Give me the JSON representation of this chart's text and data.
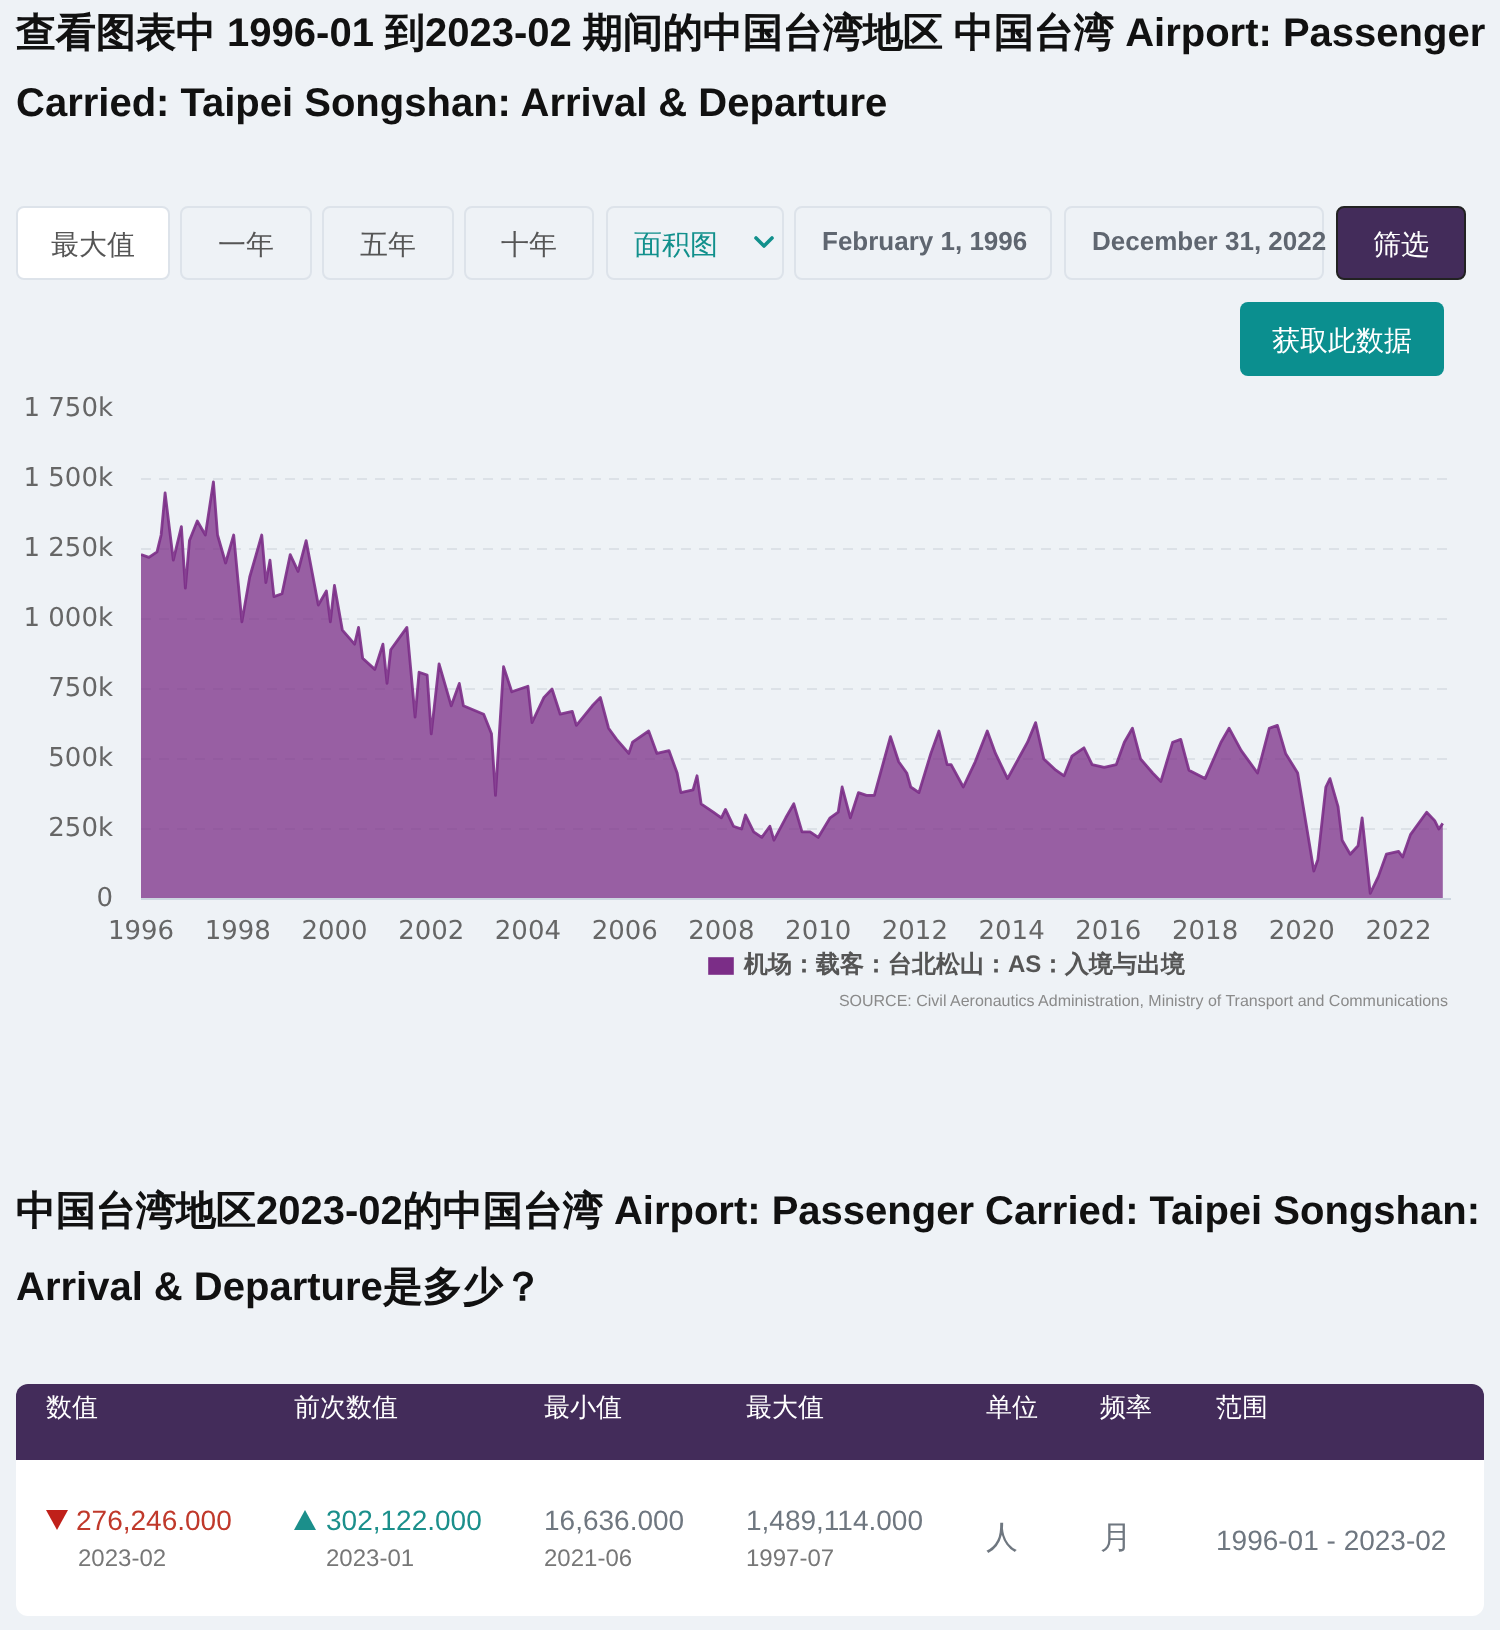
{
  "chart_data": {
    "type": "area",
    "title": "查看图表中 1996-01 到2023-02 期间的中国台湾地区 中国台湾 Airport: Passenger Carried: Taipei Songshan: Arrival & Departure",
    "x": [
      "1996-01",
      "1996-03",
      "1996-05",
      "1996-06",
      "1996-07",
      "1996-09",
      "1996-11",
      "1996-12",
      "1997-01",
      "1997-03",
      "1997-05",
      "1997-07",
      "1997-08",
      "1997-10",
      "1997-12",
      "1998-02",
      "1998-04",
      "1998-07",
      "1998-08",
      "1998-09",
      "1998-10",
      "1998-12",
      "1999-02",
      "1999-04",
      "1999-06",
      "1999-09",
      "1999-11",
      "1999-12",
      "2000-01",
      "2000-03",
      "2000-06",
      "2000-07",
      "2000-08",
      "2000-11",
      "2001-01",
      "2001-02",
      "2001-03",
      "2001-07",
      "2001-09",
      "2001-10",
      "2001-12",
      "2002-01",
      "2002-03",
      "2002-06",
      "2002-08",
      "2002-09",
      "2003-02",
      "2003-04",
      "2003-05",
      "2003-07",
      "2003-09",
      "2004-01",
      "2004-02",
      "2004-05",
      "2004-07",
      "2004-09",
      "2004-12",
      "2005-01",
      "2005-05",
      "2005-07",
      "2005-09",
      "2005-11",
      "2006-02",
      "2006-03",
      "2006-07",
      "2006-09",
      "2006-12",
      "2007-02",
      "2007-03",
      "2007-06",
      "2007-07",
      "2007-08",
      "2007-11",
      "2008-01",
      "2008-02",
      "2008-04",
      "2008-06",
      "2008-07",
      "2008-09",
      "2008-11",
      "2009-01",
      "2009-02",
      "2009-05",
      "2009-07",
      "2009-09",
      "2009-11",
      "2010-01",
      "2010-04",
      "2010-06",
      "2010-07",
      "2010-09",
      "2010-11",
      "2011-01",
      "2011-03",
      "2011-07",
      "2011-09",
      "2011-11",
      "2011-12",
      "2012-02",
      "2012-05",
      "2012-07",
      "2012-09",
      "2012-10",
      "2013-01",
      "2013-04",
      "2013-07",
      "2013-09",
      "2013-12",
      "2014-05",
      "2014-07",
      "2014-09",
      "2014-12",
      "2015-02",
      "2015-04",
      "2015-07",
      "2015-09",
      "2015-12",
      "2016-03",
      "2016-05",
      "2016-07",
      "2016-09",
      "2016-12",
      "2017-02",
      "2017-05",
      "2017-07",
      "2017-09",
      "2018-01",
      "2018-05",
      "2018-07",
      "2018-10",
      "2019-02",
      "2019-05",
      "2019-07",
      "2019-09",
      "2019-12",
      "2020-03",
      "2020-04",
      "2020-05",
      "2020-07",
      "2020-08",
      "2020-10",
      "2020-11",
      "2021-01",
      "2021-03",
      "2021-04",
      "2021-06",
      "2021-08",
      "2021-10",
      "2022-01",
      "2022-02",
      "2022-04",
      "2022-08",
      "2022-10",
      "2022-11",
      "2022-12"
    ],
    "series": [
      {
        "name": "机场：载客：台北松山：AS：入境与出境",
        "color": "#7b2d87",
        "values": [
          1230000,
          1220000,
          1240000,
          1300000,
          1450000,
          1210000,
          1330000,
          1110000,
          1280000,
          1350000,
          1300000,
          1490000,
          1300000,
          1200000,
          1300000,
          990000,
          1150000,
          1300000,
          1130000,
          1210000,
          1080000,
          1090000,
          1230000,
          1170000,
          1280000,
          1050000,
          1100000,
          990000,
          1120000,
          960000,
          910000,
          970000,
          860000,
          820000,
          910000,
          770000,
          890000,
          970000,
          650000,
          810000,
          800000,
          590000,
          840000,
          690000,
          770000,
          690000,
          660000,
          590000,
          370000,
          830000,
          740000,
          760000,
          630000,
          720000,
          750000,
          660000,
          670000,
          620000,
          690000,
          720000,
          610000,
          570000,
          520000,
          560000,
          600000,
          520000,
          530000,
          450000,
          380000,
          390000,
          440000,
          340000,
          310000,
          290000,
          320000,
          260000,
          250000,
          300000,
          240000,
          220000,
          260000,
          210000,
          290000,
          340000,
          240000,
          240000,
          220000,
          290000,
          310000,
          400000,
          290000,
          380000,
          370000,
          370000,
          580000,
          490000,
          450000,
          400000,
          380000,
          520000,
          600000,
          480000,
          480000,
          400000,
          490000,
          600000,
          520000,
          430000,
          560000,
          630000,
          500000,
          460000,
          440000,
          510000,
          540000,
          480000,
          470000,
          480000,
          560000,
          610000,
          500000,
          450000,
          420000,
          560000,
          570000,
          460000,
          430000,
          560000,
          610000,
          530000,
          450000,
          610000,
          620000,
          520000,
          450000,
          190000,
          100000,
          140000,
          400000,
          430000,
          330000,
          210000,
          160000,
          190000,
          290000,
          20000,
          80000,
          160000,
          170000,
          150000,
          230000,
          310000,
          280000,
          250000,
          270000
        ]
      }
    ],
    "xlim": [
      "1996-01",
      "2023-02"
    ],
    "xticks": [
      "1996",
      "1998",
      "2000",
      "2002",
      "2004",
      "2006",
      "2008",
      "2010",
      "2012",
      "2014",
      "2016",
      "2018",
      "2020",
      "2022"
    ],
    "ylim": [
      0,
      1750000
    ],
    "yticks": [
      0,
      {
        "value": 250000,
        "label": "250k"
      },
      {
        "value": 500000,
        "label": "500k"
      },
      {
        "value": 750000,
        "label": "750k"
      },
      {
        "value": 1000000,
        "label": "1 000k"
      },
      {
        "value": 1250000,
        "label": "1 250k"
      },
      {
        "value": 1500000,
        "label": "1 500k"
      },
      {
        "value": 1750000,
        "label": "1 750k"
      }
    ],
    "grid": "y",
    "legend": "bottom",
    "annotations": [
      "最大值",
      "一年",
      "五年",
      "十年",
      "面积图",
      "February 1, 1996",
      "December 31, 2022",
      "筛选",
      "获取此数据",
      "SOURCE: Civil Aeronautics Administration, Ministry of Transport and Communications",
      "中国台湾地区2023-02的中国台湾 Airport: Passenger Carried: Taipei Songshan: Arrival & Departure是多少？",
      "数值",
      "前次数值",
      "最小值",
      "最大值",
      "单位",
      "频率",
      "范围",
      "276,246.000",
      "2023-02",
      "302,122.000",
      "2023-01",
      "16,636.000",
      "2021-06",
      "1,489,114.000",
      "1997-07",
      "人",
      "月",
      "1996-01 - 2023-02"
    ]
  }
}
